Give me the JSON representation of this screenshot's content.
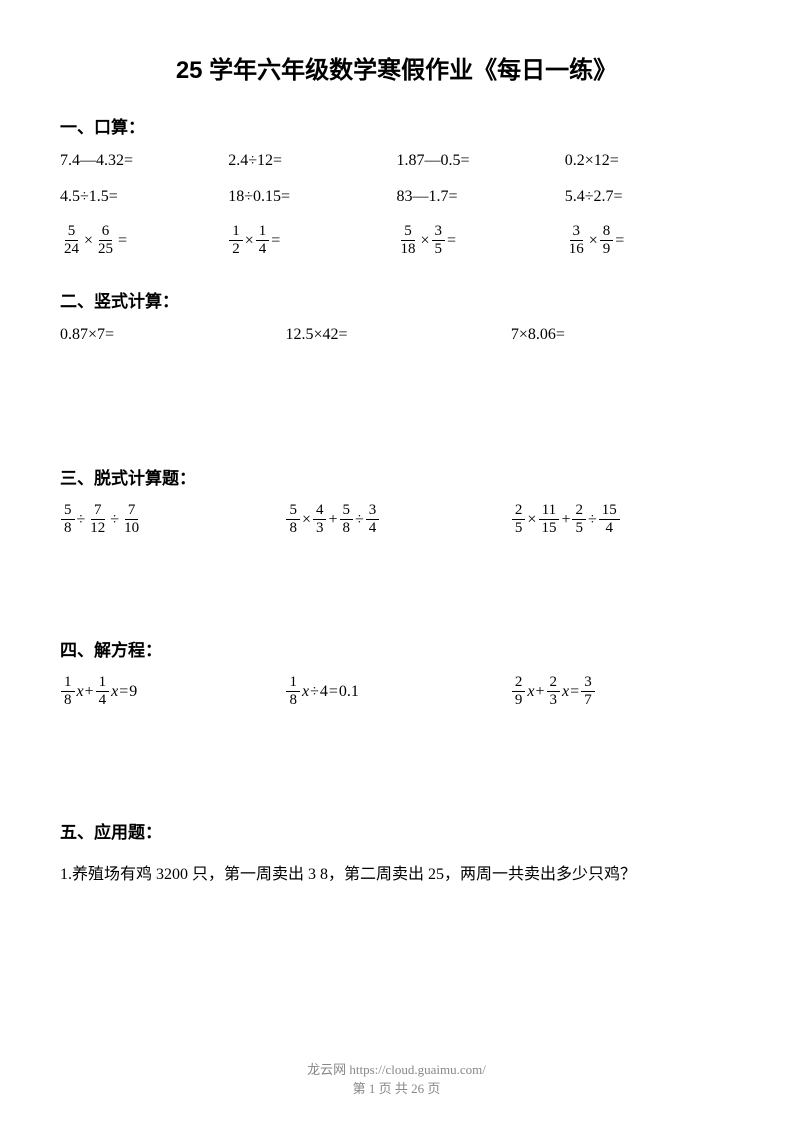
{
  "title": "25 学年六年级数学寒假作业《每日一练》",
  "section1": {
    "header": "一、口算：",
    "row1": {
      "c1": "7.4—4.32=",
      "c2": "2.4÷12=",
      "c3": "1.87—0.5=",
      "c4": "0.2×12="
    },
    "row2": {
      "c1": "4.5÷1.5=",
      "c2": "18÷0.15=",
      "c3": "83—1.7=",
      "c4": "5.4÷2.7="
    },
    "row3": {
      "f1": {
        "an": "5",
        "ad": "24",
        "bn": "6",
        "bd": "25"
      },
      "f2": {
        "an": "1",
        "ad": "2",
        "bn": "1",
        "bd": "4"
      },
      "f3": {
        "an": "5",
        "ad": "18",
        "bn": "3",
        "bd": "5"
      },
      "f4": {
        "an": "3",
        "ad": "16",
        "bn": "8",
        "bd": "9"
      }
    }
  },
  "section2": {
    "header": "二、竖式计算：",
    "row1": {
      "c1": "0.87×7=",
      "c2": "12.5×42=",
      "c3": "7×8.06="
    }
  },
  "section3": {
    "header": "三、脱式计算题：",
    "e1": {
      "an": "5",
      "ad": "8",
      "bn": "7",
      "bd": "12",
      "cn": "7",
      "cd": "10",
      "op1": "÷",
      "op2": "÷"
    },
    "e2": {
      "an": "5",
      "ad": "8",
      "bn": "4",
      "bd": "3",
      "cn": "5",
      "cd": "8",
      "dn": "3",
      "dd": "4",
      "op1": "×",
      "op2": "+",
      "op3": "÷"
    },
    "e3": {
      "an": "2",
      "ad": "5",
      "bn": "11",
      "bd": "15",
      "cn": "2",
      "cd": "5",
      "dn": "15",
      "dd": "4",
      "op1": "×",
      "op2": "+",
      "op3": "÷"
    }
  },
  "section4": {
    "header": "四、解方程：",
    "e1": {
      "an": "1",
      "ad": "8",
      "bn": "1",
      "bd": "4",
      "op": "+",
      "rhs": "9"
    },
    "e2": {
      "an": "1",
      "ad": "8",
      "op": "÷",
      "val": "4",
      "rhs": "0.1"
    },
    "e3": {
      "an": "2",
      "ad": "9",
      "bn": "2",
      "bd": "3",
      "op": "+",
      "rn": "3",
      "rd": "7"
    }
  },
  "section5": {
    "header": "五、应用题：",
    "problem": "1.养殖场有鸡 3200 只，第一周卖出 3 8，第二周卖出 25，两周一共卖出多少只鸡？"
  },
  "footer": {
    "text": "龙云网 https://cloud.guaimu.com/",
    "page": "第 1 页 共 26 页"
  },
  "colors": {
    "text": "#000000",
    "background": "#ffffff",
    "footer": "#888888"
  },
  "typography": {
    "title_fontsize": 24,
    "section_fontsize": 17,
    "body_fontsize": 16,
    "footer_fontsize": 13
  }
}
